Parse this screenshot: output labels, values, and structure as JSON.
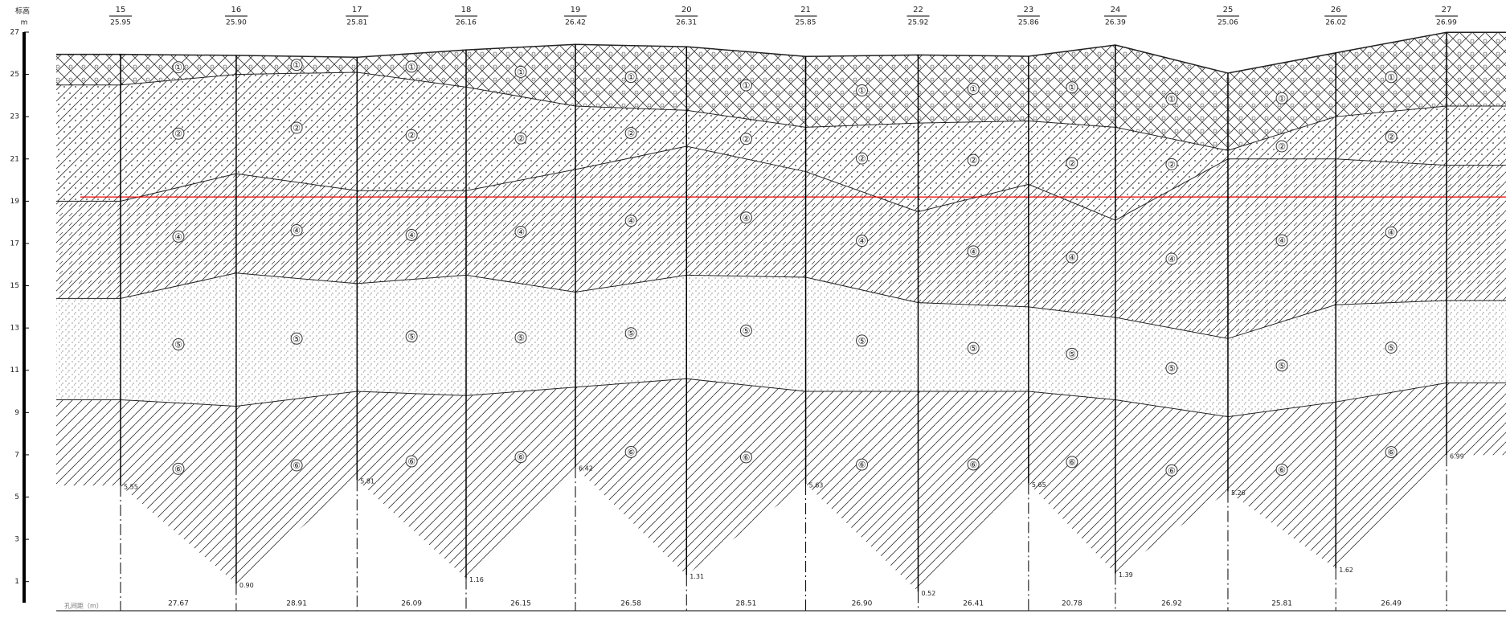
{
  "chart_data": {
    "type": "section",
    "y_label": "标高",
    "y_unit": "m",
    "distance_label": "孔间距（m）",
    "ylim": [
      0,
      27
    ],
    "yticks": [
      27,
      25,
      23,
      21,
      19,
      17,
      15,
      13,
      11,
      9,
      7,
      5,
      3,
      1
    ],
    "boreholes": [
      "15",
      "16",
      "17",
      "18",
      "19",
      "20",
      "21",
      "22",
      "23",
      "24",
      "25",
      "26",
      "27"
    ],
    "elevations": [
      25.95,
      25.9,
      25.81,
      26.16,
      26.42,
      26.31,
      25.85,
      25.92,
      25.86,
      26.39,
      25.06,
      26.02,
      26.99
    ],
    "elevation_labels": [
      "25.95",
      "25.90",
      "25.81",
      "26.16",
      "26.42",
      "26.31",
      "25.85",
      "25.92",
      "25.86",
      "26.39",
      "25.06",
      "26.02",
      "26.99"
    ],
    "bottoms": [
      5.55,
      0.9,
      5.81,
      1.16,
      6.42,
      1.31,
      5.63,
      0.52,
      5.65,
      1.39,
      5.26,
      1.62,
      6.99
    ],
    "bottom_labels": [
      "5.55",
      "0.90",
      "5.81",
      "1.16",
      "6.42",
      "1.31",
      "5.63",
      "0.52",
      "5.65",
      "1.39",
      "5.26",
      "1.62",
      "6.99"
    ],
    "distances": [
      27.67,
      28.91,
      26.09,
      26.15,
      26.58,
      28.51,
      26.9,
      26.41,
      20.78,
      26.92,
      25.81,
      26.49
    ],
    "distance_labels": [
      "27.67",
      "28.91",
      "26.09",
      "26.15",
      "26.58",
      "28.51",
      "26.90",
      "26.41",
      "20.78",
      "26.92",
      "25.81",
      "26.49"
    ],
    "water_level": 19.2,
    "layers": [
      "①",
      "②",
      "④",
      "⑤",
      "⑥"
    ],
    "boundaries": [
      [
        24.5,
        25.0,
        25.1,
        24.4,
        23.5,
        23.3,
        22.5,
        22.7,
        22.8,
        22.5,
        21.4,
        23.0,
        23.5
      ],
      [
        19.0,
        20.3,
        19.5,
        19.5,
        20.5,
        21.6,
        20.4,
        18.5,
        19.8,
        18.1,
        21.0,
        21.0,
        20.7
      ],
      [
        14.4,
        15.6,
        15.1,
        15.5,
        14.7,
        15.5,
        15.4,
        14.2,
        14.0,
        13.5,
        12.5,
        14.1,
        14.3
      ],
      [
        9.6,
        9.3,
        10.0,
        9.8,
        10.2,
        10.6,
        10.0,
        10.0,
        10.0,
        9.6,
        8.8,
        9.5,
        10.4
      ]
    ]
  }
}
